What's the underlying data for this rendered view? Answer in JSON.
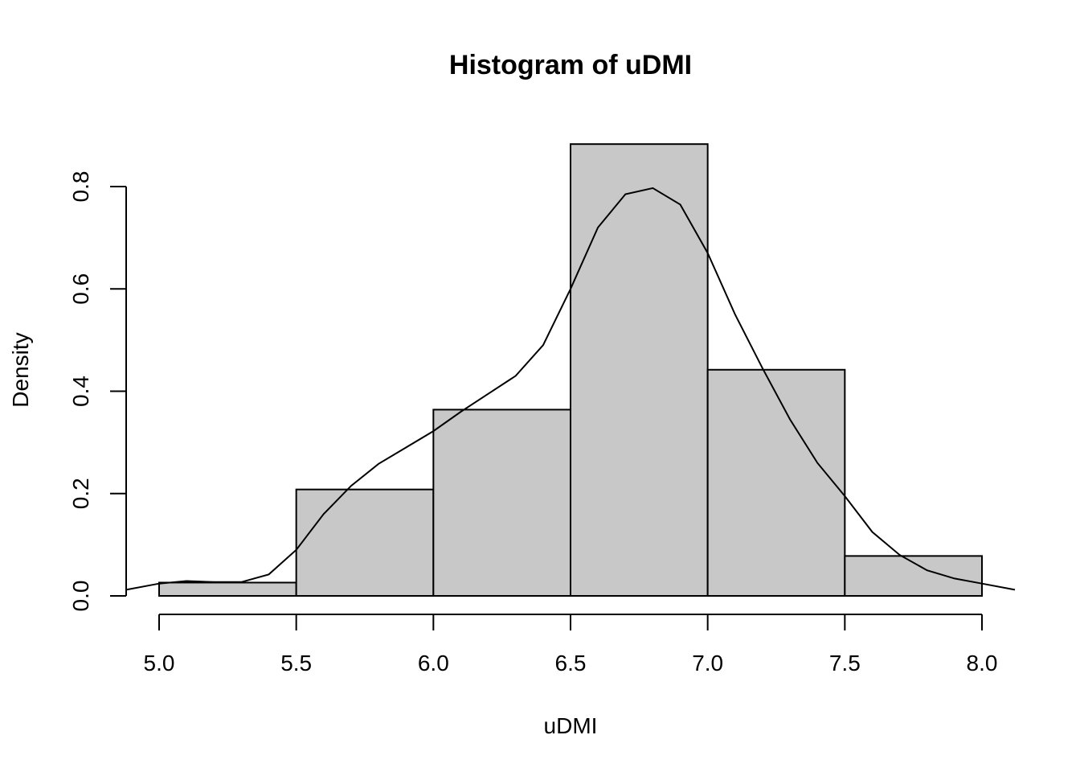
{
  "chart_data": {
    "type": "bar",
    "title": "Histogram of uDMI",
    "xlabel": "uDMI",
    "ylabel": "Density",
    "bins": [
      {
        "start": 5.0,
        "end": 5.5,
        "density": 0.026
      },
      {
        "start": 5.5,
        "end": 6.0,
        "density": 0.208
      },
      {
        "start": 6.0,
        "end": 6.5,
        "density": 0.364
      },
      {
        "start": 6.5,
        "end": 7.0,
        "density": 0.883
      },
      {
        "start": 7.0,
        "end": 7.5,
        "density": 0.442
      },
      {
        "start": 7.5,
        "end": 8.0,
        "density": 0.078
      }
    ],
    "density_curve": {
      "x": [
        4.88,
        5.0,
        5.1,
        5.2,
        5.3,
        5.4,
        5.5,
        5.6,
        5.7,
        5.8,
        5.9,
        6.0,
        6.1,
        6.2,
        6.3,
        6.4,
        6.5,
        6.6,
        6.7,
        6.8,
        6.9,
        7.0,
        7.1,
        7.2,
        7.3,
        7.4,
        7.5,
        7.6,
        7.7,
        7.8,
        7.9,
        8.0,
        8.12
      ],
      "y": [
        0.012,
        0.024,
        0.029,
        0.027,
        0.027,
        0.042,
        0.09,
        0.16,
        0.215,
        0.258,
        0.29,
        0.322,
        0.36,
        0.395,
        0.43,
        0.49,
        0.6,
        0.72,
        0.785,
        0.797,
        0.765,
        0.67,
        0.55,
        0.445,
        0.345,
        0.26,
        0.195,
        0.125,
        0.08,
        0.05,
        0.034,
        0.024,
        0.012
      ]
    },
    "xticks": [
      "5.0",
      "5.5",
      "6.0",
      "6.5",
      "7.0",
      "7.5",
      "8.0"
    ],
    "xtick_values": [
      5.0,
      5.5,
      6.0,
      6.5,
      7.0,
      7.5,
      8.0
    ],
    "yticks": [
      "0.0",
      "0.2",
      "0.4",
      "0.6",
      "0.8"
    ],
    "ytick_values": [
      0.0,
      0.2,
      0.4,
      0.6,
      0.8
    ],
    "xlim": [
      4.88,
      8.12
    ],
    "ylim": [
      0,
      0.883
    ],
    "bar_fill": "#c8c8c8",
    "grid": false
  }
}
